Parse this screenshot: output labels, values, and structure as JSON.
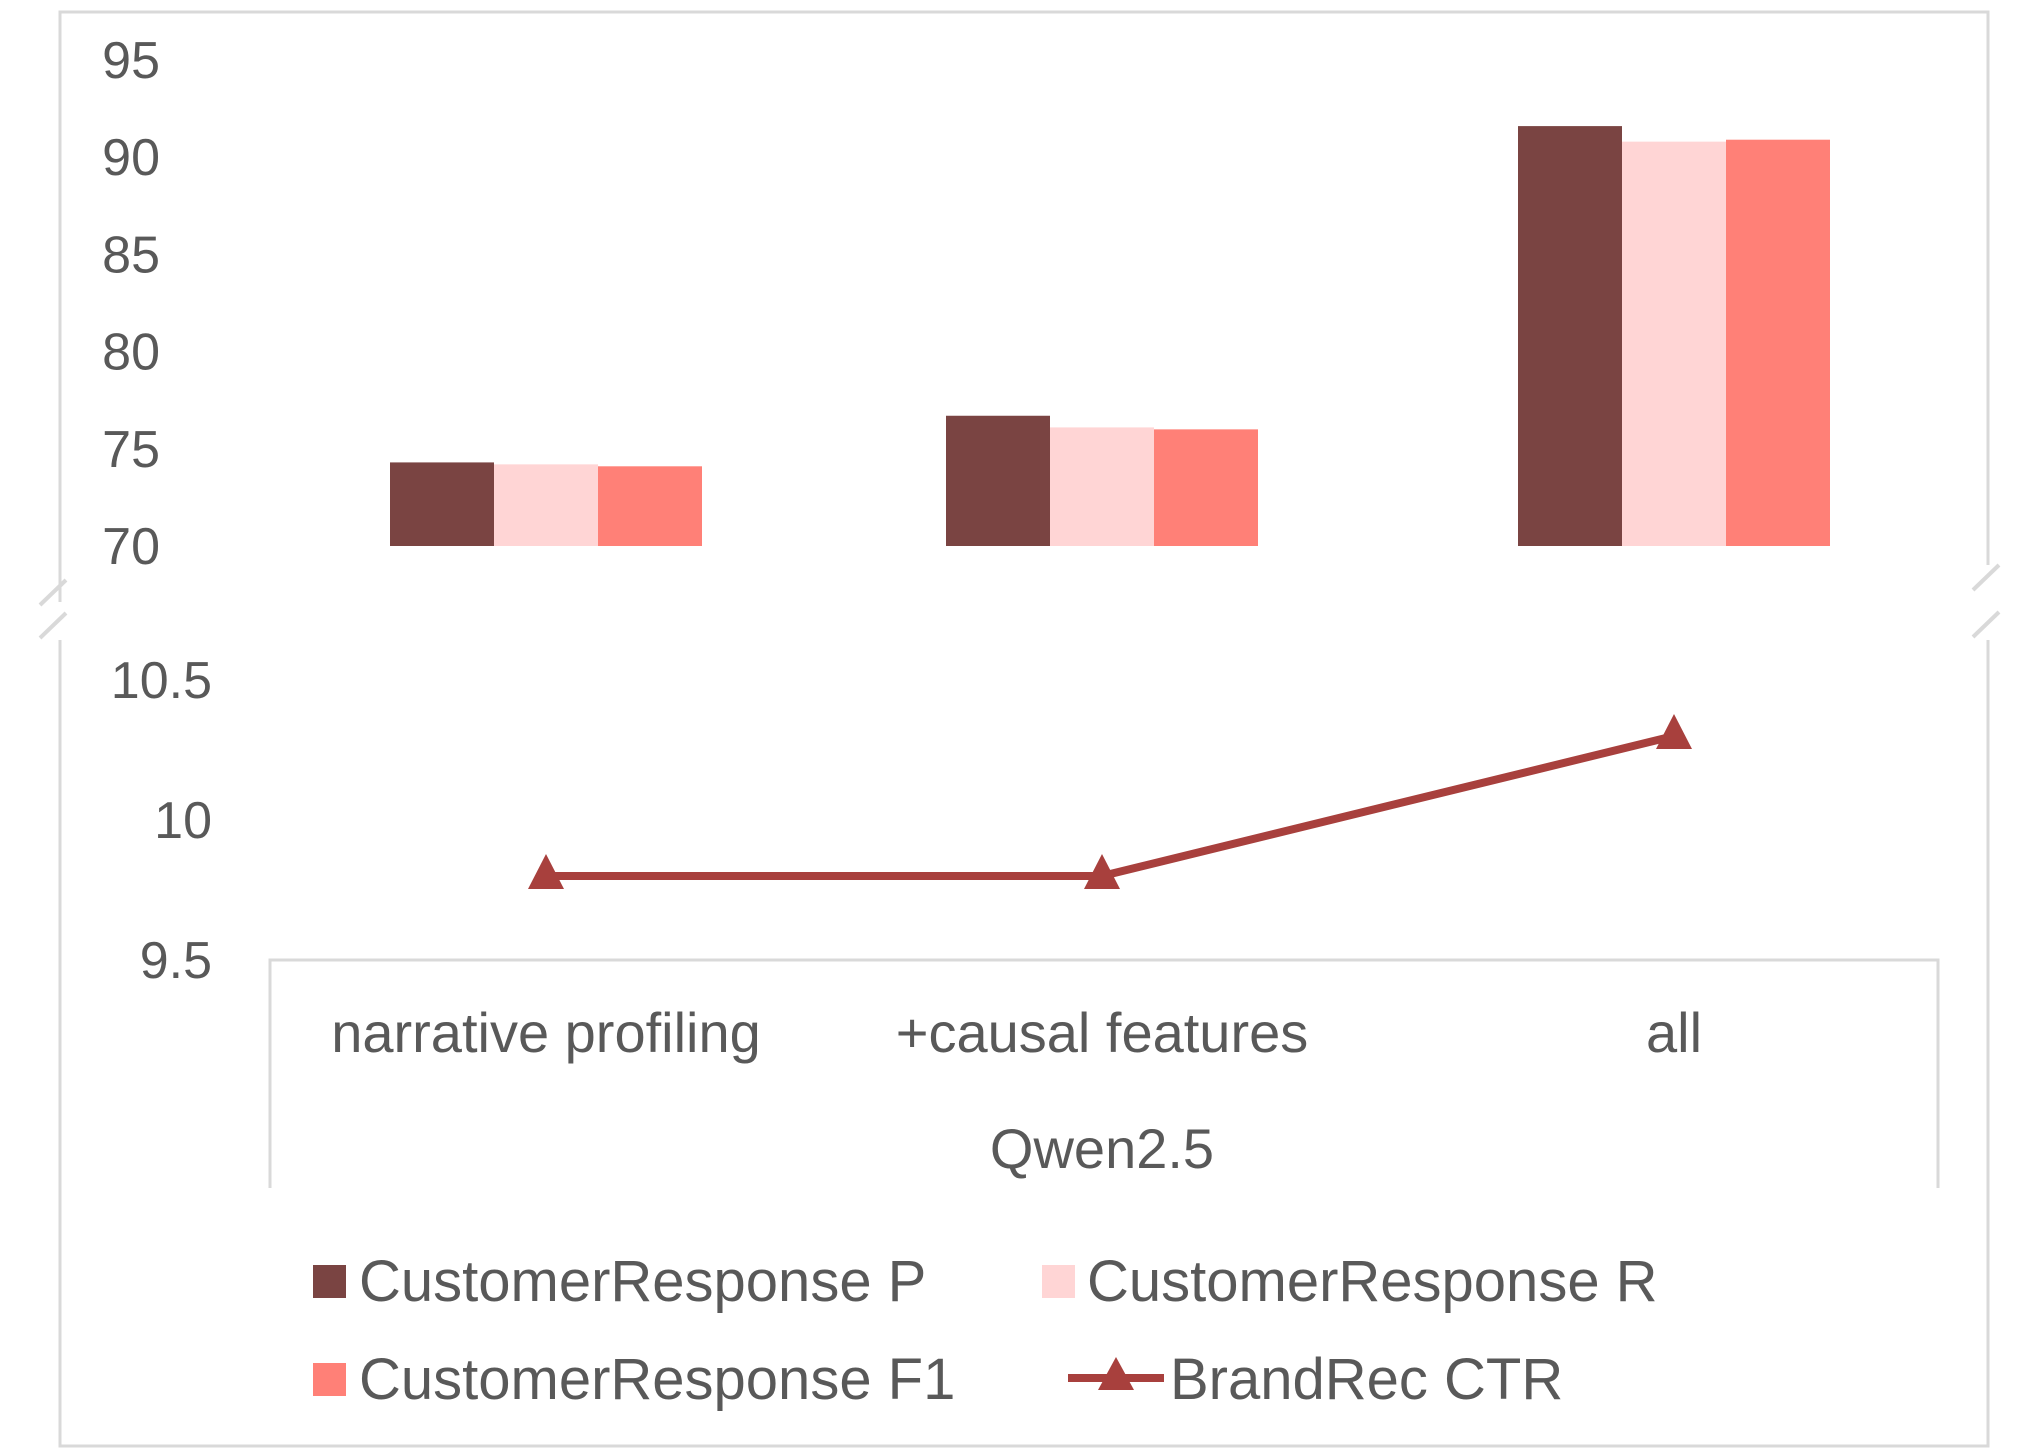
{
  "chart_data": {
    "type": "bar",
    "group_label": "Qwen2.5",
    "categories": [
      "narrative profiling",
      "+causal features",
      "all"
    ],
    "series": [
      {
        "name": "CustomerResponse P",
        "type": "bar",
        "axis": "top",
        "color": "#7a4442",
        "values": [
          74.3,
          76.7,
          91.6
        ]
      },
      {
        "name": "CustomerResponse R",
        "type": "bar",
        "axis": "top",
        "color": "#ffd5d5",
        "values": [
          74.2,
          76.1,
          90.8
        ]
      },
      {
        "name": "CustomerResponse F1",
        "type": "bar",
        "axis": "top",
        "color": "#ff8077",
        "values": [
          74.1,
          76.0,
          90.9
        ]
      },
      {
        "name": "BrandRec CTR",
        "type": "line",
        "marker": "triangle",
        "axis": "bottom",
        "color": "#a8403d",
        "values": [
          9.8,
          9.8,
          10.3
        ]
      }
    ],
    "top_axis": {
      "ylim": [
        70,
        95
      ],
      "ticks": [
        "95",
        "90",
        "85",
        "80",
        "75",
        "70"
      ]
    },
    "bottom_axis": {
      "ylim": [
        9.5,
        10.6
      ],
      "ticks": [
        "10.5",
        "10",
        "9.5"
      ]
    },
    "broken_axis": true,
    "legend_position": "bottom"
  }
}
